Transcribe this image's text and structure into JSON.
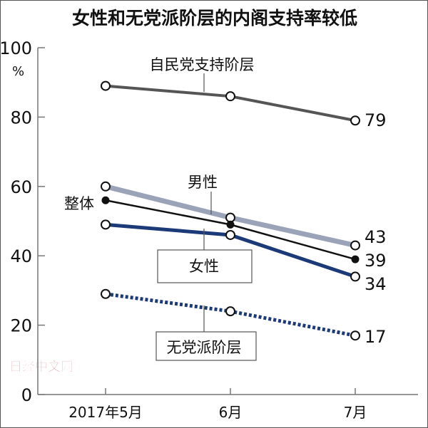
{
  "watermark": "日经中文网",
  "chart_data": {
    "type": "line",
    "title": "女性和无党派阶层的内阁支持率较低",
    "ylabel": "%",
    "ylim": [
      0,
      100
    ],
    "yticks": [
      0,
      20,
      40,
      60,
      80,
      100
    ],
    "categories": [
      "2017年5月",
      "6月",
      "7月"
    ],
    "series": [
      {
        "name": "自民党支持阶层",
        "values": [
          89,
          86,
          79
        ],
        "end_label": "79",
        "color": "#555555",
        "style": "solid",
        "marker": "open"
      },
      {
        "name": "男性",
        "values": [
          60,
          51,
          43
        ],
        "end_label": "43",
        "color": "#9aa3b8",
        "style": "solid",
        "marker": "open"
      },
      {
        "name": "整体",
        "values": [
          56,
          49,
          39
        ],
        "end_label": "39",
        "color": "#111111",
        "style": "solid",
        "marker": "filled"
      },
      {
        "name": "女性",
        "values": [
          49,
          46,
          34
        ],
        "end_label": "34",
        "color": "#1d3a78",
        "style": "solid",
        "marker": "open"
      },
      {
        "name": "无党派阶层",
        "values": [
          29,
          24,
          17
        ],
        "end_label": "17",
        "color": "#1d3a78",
        "style": "dotted",
        "marker": "open"
      }
    ]
  }
}
